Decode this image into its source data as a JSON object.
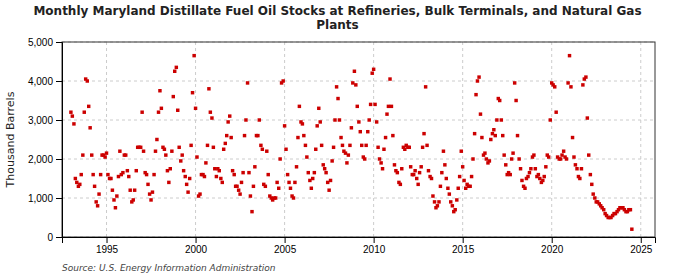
{
  "chart_data": {
    "type": "scatter",
    "title": "Monthly Maryland Distillate Fuel Oil Stocks at Refineries, Bulk Terminals, and Natural Gas\nPlants",
    "ylabel": "Thousand Barrels",
    "source": "Source: U.S. Energy Information Administration",
    "color": "#cc0000",
    "marker": "square",
    "grid": true,
    "xlim": [
      1992.5,
      2025.8
    ],
    "xticks": [
      1995,
      2000,
      2005,
      2010,
      2015,
      2020,
      2025
    ],
    "ylim": [
      0,
      5000
    ],
    "yticks": [
      0,
      {
        "value": 1000,
        "label": "1,000"
      },
      {
        "value": 2000,
        "label": "2,000"
      },
      {
        "value": 3000,
        "label": "3,000"
      },
      {
        "value": 4000,
        "label": "4,000"
      },
      {
        "value": 5000,
        "label": "5,000"
      }
    ],
    "x": [
      1993.0,
      1993.08,
      1993.17,
      1993.25,
      1993.33,
      1993.42,
      1993.5,
      1993.58,
      1993.67,
      1993.75,
      1993.83,
      1993.92,
      1994.0,
      1994.08,
      1994.17,
      1994.25,
      1994.33,
      1994.42,
      1994.5,
      1994.58,
      1994.67,
      1994.75,
      1994.83,
      1994.92,
      1995.0,
      1995.08,
      1995.17,
      1995.25,
      1995.33,
      1995.42,
      1995.5,
      1995.58,
      1995.67,
      1995.75,
      1995.83,
      1995.92,
      1996.0,
      1996.08,
      1996.17,
      1996.25,
      1996.33,
      1996.42,
      1996.5,
      1996.58,
      1996.67,
      1996.75,
      1996.83,
      1996.92,
      1997.0,
      1997.08,
      1997.17,
      1997.25,
      1997.33,
      1997.42,
      1997.5,
      1997.58,
      1997.67,
      1997.75,
      1997.83,
      1997.92,
      1998.0,
      1998.08,
      1998.17,
      1998.25,
      1998.33,
      1998.42,
      1998.5,
      1998.58,
      1998.67,
      1998.75,
      1998.83,
      1998.92,
      1999.0,
      1999.08,
      1999.17,
      1999.25,
      1999.33,
      1999.42,
      1999.5,
      1999.58,
      1999.67,
      1999.75,
      1999.83,
      1999.92,
      2000.0,
      2000.08,
      2000.17,
      2000.25,
      2000.33,
      2000.42,
      2000.5,
      2000.58,
      2000.67,
      2000.75,
      2000.83,
      2000.92,
      2001.0,
      2001.08,
      2001.17,
      2001.25,
      2001.33,
      2001.42,
      2001.5,
      2001.58,
      2001.67,
      2001.75,
      2001.83,
      2001.92,
      2002.0,
      2002.08,
      2002.17,
      2002.25,
      2002.33,
      2002.42,
      2002.5,
      2002.58,
      2002.67,
      2002.75,
      2002.83,
      2002.92,
      2003.0,
      2003.08,
      2003.17,
      2003.25,
      2003.33,
      2003.42,
      2003.5,
      2003.58,
      2003.67,
      2003.75,
      2003.83,
      2003.92,
      2004.0,
      2004.08,
      2004.17,
      2004.25,
      2004.33,
      2004.42,
      2004.5,
      2004.58,
      2004.67,
      2004.75,
      2004.83,
      2004.92,
      2005.0,
      2005.08,
      2005.17,
      2005.25,
      2005.33,
      2005.42,
      2005.5,
      2005.58,
      2005.67,
      2005.75,
      2005.83,
      2005.92,
      2006.0,
      2006.08,
      2006.17,
      2006.25,
      2006.33,
      2006.42,
      2006.5,
      2006.58,
      2006.67,
      2006.75,
      2006.83,
      2006.92,
      2007.0,
      2007.08,
      2007.17,
      2007.25,
      2007.33,
      2007.42,
      2007.5,
      2007.58,
      2007.67,
      2007.75,
      2007.83,
      2007.92,
      2008.0,
      2008.08,
      2008.17,
      2008.25,
      2008.33,
      2008.42,
      2008.5,
      2008.58,
      2008.67,
      2008.75,
      2008.83,
      2008.92,
      2009.0,
      2009.08,
      2009.17,
      2009.25,
      2009.33,
      2009.42,
      2009.5,
      2009.58,
      2009.67,
      2009.75,
      2009.83,
      2009.92,
      2010.0,
      2010.08,
      2010.17,
      2010.25,
      2010.33,
      2010.42,
      2010.5,
      2010.58,
      2010.67,
      2010.75,
      2010.83,
      2010.92,
      2011.0,
      2011.08,
      2011.17,
      2011.25,
      2011.33,
      2011.42,
      2011.5,
      2011.58,
      2011.67,
      2011.75,
      2011.83,
      2011.92,
      2012.0,
      2012.08,
      2012.17,
      2012.25,
      2012.33,
      2012.42,
      2012.5,
      2012.58,
      2012.67,
      2012.75,
      2012.83,
      2012.92,
      2013.0,
      2013.08,
      2013.17,
      2013.25,
      2013.33,
      2013.42,
      2013.5,
      2013.58,
      2013.67,
      2013.75,
      2013.83,
      2013.92,
      2014.0,
      2014.08,
      2014.17,
      2014.25,
      2014.33,
      2014.42,
      2014.5,
      2014.58,
      2014.67,
      2014.75,
      2014.83,
      2014.92,
      2015.0,
      2015.08,
      2015.17,
      2015.25,
      2015.33,
      2015.42,
      2015.5,
      2015.58,
      2015.67,
      2015.75,
      2015.83,
      2015.92,
      2016.0,
      2016.08,
      2016.17,
      2016.25,
      2016.33,
      2016.42,
      2016.5,
      2016.58,
      2016.67,
      2016.75,
      2016.83,
      2016.92,
      2017.0,
      2017.08,
      2017.17,
      2017.25,
      2017.33,
      2017.42,
      2017.5,
      2017.58,
      2017.67,
      2017.75,
      2017.83,
      2017.92,
      2018.0,
      2018.08,
      2018.17,
      2018.25,
      2018.33,
      2018.42,
      2018.5,
      2018.58,
      2018.67,
      2018.75,
      2018.83,
      2018.92,
      2019.0,
      2019.08,
      2019.17,
      2019.25,
      2019.33,
      2019.42,
      2019.5,
      2019.58,
      2019.67,
      2019.75,
      2019.83,
      2019.92,
      2020.0,
      2020.08,
      2020.17,
      2020.25,
      2020.33,
      2020.42,
      2020.5,
      2020.58,
      2020.67,
      2020.75,
      2020.83,
      2020.92,
      2021.0,
      2021.08,
      2021.17,
      2021.25,
      2021.33,
      2021.42,
      2021.5,
      2021.58,
      2021.67,
      2021.75,
      2021.83,
      2021.92,
      2022.0,
      2022.08,
      2022.17,
      2022.25,
      2022.33,
      2022.42,
      2022.5,
      2022.58,
      2022.67,
      2022.75,
      2022.83,
      2022.92,
      2023.0,
      2023.08,
      2023.17,
      2023.25,
      2023.33,
      2023.42,
      2023.5,
      2023.58,
      2023.67,
      2023.75,
      2023.83,
      2023.92,
      2024.0,
      2024.08,
      2024.17,
      2024.25,
      2024.33,
      2024.42,
      2024.5
    ],
    "values": [
      3200,
      3100,
      2900,
      1500,
      1400,
      1300,
      1350,
      1600,
      2100,
      3200,
      4050,
      4000,
      3350,
      2800,
      2100,
      1600,
      1300,
      900,
      800,
      1100,
      1600,
      2100,
      2100,
      2050,
      2150,
      1600,
      1500,
      1500,
      1200,
      950,
      750,
      1050,
      1550,
      2200,
      1600,
      1650,
      2100,
      2100,
      1700,
      1550,
      1200,
      900,
      950,
      1200,
      1700,
      2300,
      2300,
      2300,
      3200,
      2200,
      1650,
      1600,
      1350,
      1100,
      950,
      1150,
      1600,
      2200,
      2500,
      3200,
      3750,
      3300,
      2300,
      2250,
      2100,
      1700,
      1400,
      1750,
      2200,
      3600,
      4250,
      4350,
      3250,
      2300,
      1950,
      2100,
      1700,
      1550,
      1350,
      1150,
      1500,
      2350,
      3700,
      4650,
      3300,
      2050,
      1050,
      1100,
      1600,
      1600,
      1550,
      1900,
      2350,
      3800,
      3200,
      3050,
      2300,
      1750,
      1550,
      1750,
      1700,
      1500,
      1400,
      2250,
      2400,
      2600,
      2950,
      3100,
      2550,
      1700,
      1600,
      1300,
      1300,
      1200,
      1100,
      1400,
      1650,
      2600,
      3000,
      3950,
      1650,
      1050,
      650,
      1300,
      1800,
      2600,
      2600,
      3000,
      2350,
      2250,
      1350,
      1300,
      2200,
      1600,
      1050,
      1000,
      950,
      1000,
      1000,
      1400,
      1250,
      2000,
      3950,
      4000,
      2850,
      2250,
      1600,
      1400,
      1250,
      1050,
      1000,
      1400,
      1800,
      2550,
      3350,
      2950,
      2900,
      2600,
      2350,
      2050,
      1650,
      1450,
      1250,
      1500,
      1650,
      2250,
      2850,
      3300,
      2950,
      2350,
      1850,
      1750,
      1650,
      1400,
      1200,
      1450,
      1950,
      2300,
      3000,
      3850,
      3550,
      3000,
      2550,
      2350,
      2200,
      2150,
      1900,
      2100,
      2350,
      2800,
      3950,
      4250,
      3900,
      3350,
      2950,
      2700,
      2350,
      2050,
      2000,
      2350,
      2700,
      3000,
      3400,
      4200,
      4300,
      3400,
      2950,
      2300,
      2000,
      1900,
      1750,
      2250,
      2550,
      3150,
      3350,
      4050,
      3350,
      2600,
      1850,
      1700,
      1650,
      1400,
      1350,
      1750,
      2300,
      2250,
      2350,
      2300,
      2300,
      1800,
      1600,
      1600,
      1700,
      1500,
      1350,
      1650,
      1800,
      2300,
      2650,
      3850,
      2350,
      1700,
      1550,
      1500,
      1050,
      900,
      750,
      800,
      900,
      1300,
      1650,
      2200,
      1850,
      1500,
      1250,
      1100,
      900,
      800,
      650,
      700,
      950,
      1250,
      1550,
      2200,
      1800,
      1450,
      1250,
      1350,
      1300,
      1300,
      1550,
      2000,
      2650,
      3650,
      4000,
      4100,
      3150,
      2550,
      2100,
      2150,
      2000,
      1900,
      1950,
      2500,
      2650,
      2750,
      2600,
      3000,
      3550,
      3500,
      3000,
      2600,
      2100,
      1850,
      1600,
      1650,
      1600,
      2000,
      2150,
      3950,
      3500,
      2600,
      2000,
      1750,
      1450,
      1300,
      1250,
      1500,
      1550,
      1650,
      1750,
      2050,
      2100,
      1750,
      1550,
      1600,
      1500,
      1400,
      1450,
      1550,
      1800,
      2100,
      2050,
      3000,
      3950,
      3900,
      3850,
      3200,
      2050,
      2000,
      2000,
      2100,
      2200,
      2050,
      2000,
      3950,
      4650,
      3850,
      2550,
      2050,
      1850,
      1750,
      1550,
      1500,
      1750,
      3900,
      4050,
      4100,
      3050,
      2100,
      1600,
      1350,
      1100,
      1000,
      900,
      900,
      850,
      800,
      750,
      700,
      600,
      550,
      500,
      500,
      500,
      550,
      600,
      600,
      650,
      700,
      750,
      750,
      750,
      700,
      650,
      650,
      700,
      700,
      200
    ]
  }
}
